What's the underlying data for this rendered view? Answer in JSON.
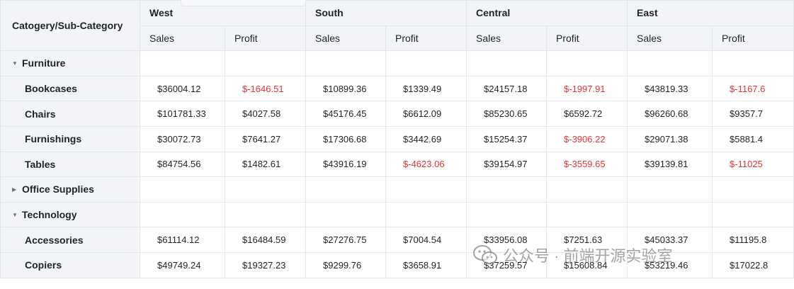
{
  "corner_label": "Catogery/Sub-Category",
  "regions": [
    "West",
    "South",
    "Central",
    "East"
  ],
  "measures": [
    "Sales",
    "Profit"
  ],
  "rows": [
    {
      "kind": "group",
      "label": "Furniture",
      "expanded": true,
      "values": []
    },
    {
      "kind": "child",
      "label": "Bookcases",
      "values": [
        "$36004.12",
        "$-1646.51",
        "$10899.36",
        "$1339.49",
        "$24157.18",
        "$-1997.91",
        "$43819.33",
        "$-1167.6"
      ]
    },
    {
      "kind": "child",
      "label": "Chairs",
      "values": [
        "$101781.33",
        "$4027.58",
        "$45176.45",
        "$6612.09",
        "$85230.65",
        "$6592.72",
        "$96260.68",
        "$9357.7"
      ]
    },
    {
      "kind": "child",
      "label": "Furnishings",
      "values": [
        "$30072.73",
        "$7641.27",
        "$17306.68",
        "$3442.69",
        "$15254.37",
        "$-3906.22",
        "$29071.38",
        "$5881.4"
      ]
    },
    {
      "kind": "child",
      "label": "Tables",
      "values": [
        "$84754.56",
        "$1482.61",
        "$43916.19",
        "$-4623.06",
        "$39154.97",
        "$-3559.65",
        "$39139.81",
        "$-11025"
      ]
    },
    {
      "kind": "group",
      "label": "Office Supplies",
      "expanded": false,
      "values": []
    },
    {
      "kind": "group",
      "label": "Technology",
      "expanded": true,
      "values": []
    },
    {
      "kind": "child",
      "label": "Accessories",
      "values": [
        "$61114.12",
        "$16484.59",
        "$27276.75",
        "$7004.54",
        "$33956.08",
        "$7251.63",
        "$45033.37",
        "$11195.8"
      ]
    },
    {
      "kind": "child",
      "label": "Copiers",
      "values": [
        "$49749.24",
        "$19327.23",
        "$9299.76",
        "$3658.91",
        "$37259.57",
        "$15608.84",
        "$53219.46",
        "$17022.8"
      ]
    }
  ],
  "colors": {
    "header_bg": "#f2f4f7",
    "negative": "#e8332f",
    "grid": "#e3e6eb"
  },
  "icons": {
    "expanded": "caret-down-icon",
    "collapsed": "caret-right-icon"
  },
  "watermark": {
    "text": "公众号 · 前端开源实验室"
  }
}
